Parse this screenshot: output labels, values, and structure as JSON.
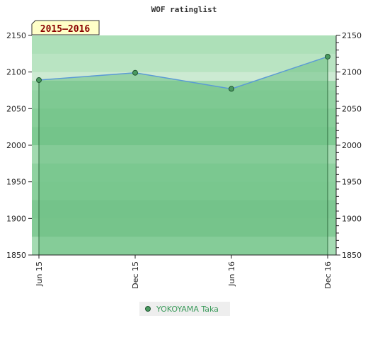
{
  "chart_data": {
    "type": "line",
    "title": "WOF ratinglist",
    "period_label": "2015–2016",
    "x": [
      "Jun 15",
      "Dec 15",
      "Jun 16",
      "Dec 16"
    ],
    "series": [
      {
        "name": "YOKOYAMA Taka",
        "values": [
          2089,
          2099,
          2077,
          2121
        ]
      }
    ],
    "ylim": [
      1850,
      2150
    ],
    "y_ticks": [
      1850,
      1900,
      1950,
      2000,
      2050,
      2100,
      2150
    ],
    "xlabel": "",
    "ylabel": "",
    "legend_position": "bottom-center",
    "grid": true,
    "colors": {
      "line": "#5b9bd5",
      "fill": "#6cbf84",
      "marker": "#4a9a60",
      "period_bg": "#ffffc8",
      "period_text": "#8b0000",
      "legend_text": "#3a9a5a"
    }
  }
}
